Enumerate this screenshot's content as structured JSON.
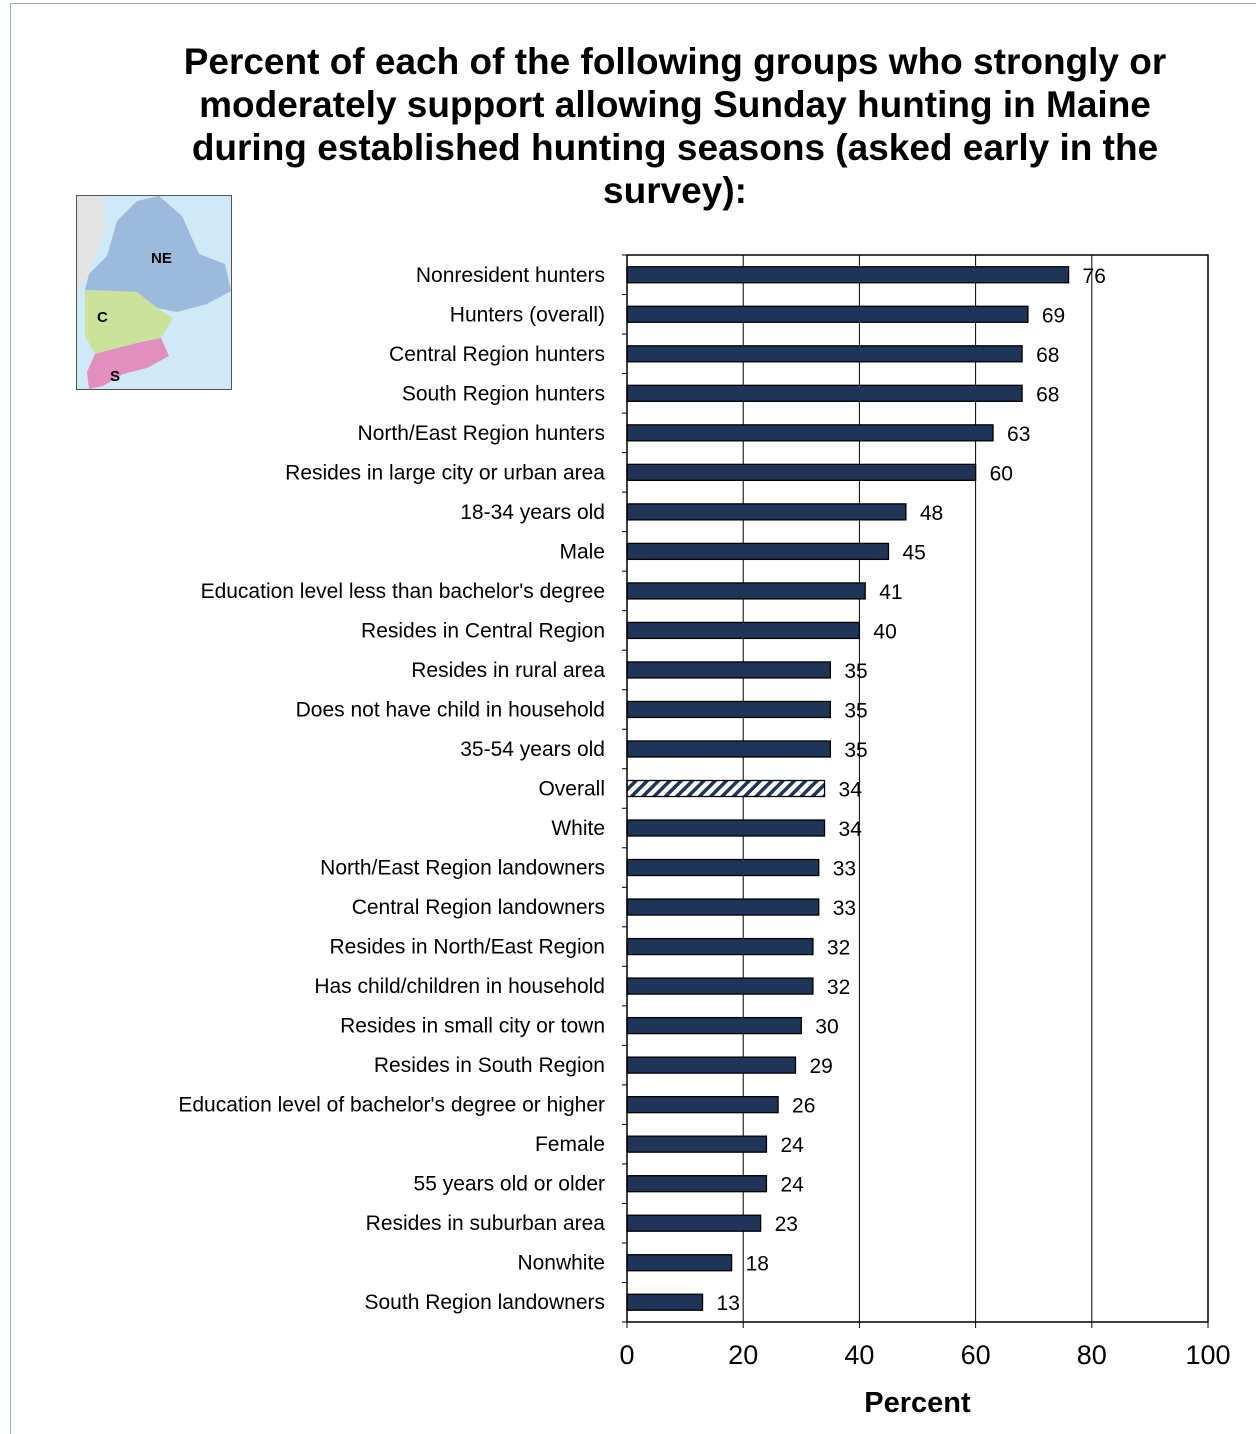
{
  "chart_data": {
    "type": "bar",
    "orientation": "horizontal",
    "title": "Percent of each of the following groups who strongly or moderately support allowing Sunday hunting in Maine during established hunting seasons (asked early in the survey):",
    "xlabel": "Percent",
    "ylabel": "",
    "xlim": [
      0,
      100
    ],
    "xticks": [
      "0",
      "20",
      "40",
      "60",
      "80",
      "100"
    ],
    "grid": "vertical",
    "bar_color": "#1f3456",
    "highlight_category": "Overall",
    "categories": [
      "Nonresident hunters",
      "Hunters (overall)",
      "Central Region hunters",
      "South Region hunters",
      "North/East Region hunters",
      "Resides in large city or urban area",
      "18-34 years old",
      "Male",
      "Education level less than bachelor's degree",
      "Resides in Central Region",
      "Resides in rural area",
      "Does not have child in household",
      "35-54 years old",
      "Overall",
      "White",
      "North/East Region landowners",
      "Central Region landowners",
      "Resides in North/East Region",
      "Has child/children in household",
      "Resides in small city or town",
      "Resides in South Region",
      "Education level of bachelor's degree or higher",
      "Female",
      "55 years old or older",
      "Resides in suburban area",
      "Nonwhite",
      "South Region landowners"
    ],
    "values": [
      76,
      69,
      68,
      68,
      63,
      60,
      48,
      45,
      41,
      40,
      35,
      35,
      35,
      34,
      34,
      33,
      33,
      32,
      32,
      30,
      29,
      26,
      24,
      24,
      23,
      18,
      13
    ],
    "value_labels": [
      "76",
      "69",
      "68",
      "68",
      "63",
      "60",
      "48",
      "45",
      "41",
      "40",
      "35",
      "35",
      "35",
      "34",
      "34",
      "33",
      "33",
      "32",
      "32",
      "30",
      "29",
      "26",
      "24",
      "24",
      "23",
      "18",
      "13"
    ]
  },
  "map_inset": {
    "regions": [
      "NE",
      "C",
      "S"
    ],
    "colors": {
      "water": "#cfe9f7",
      "land": "#e4e4e4",
      "ne": "#9db9dc",
      "c": "#cbe29a",
      "s": "#e08fbf"
    }
  }
}
